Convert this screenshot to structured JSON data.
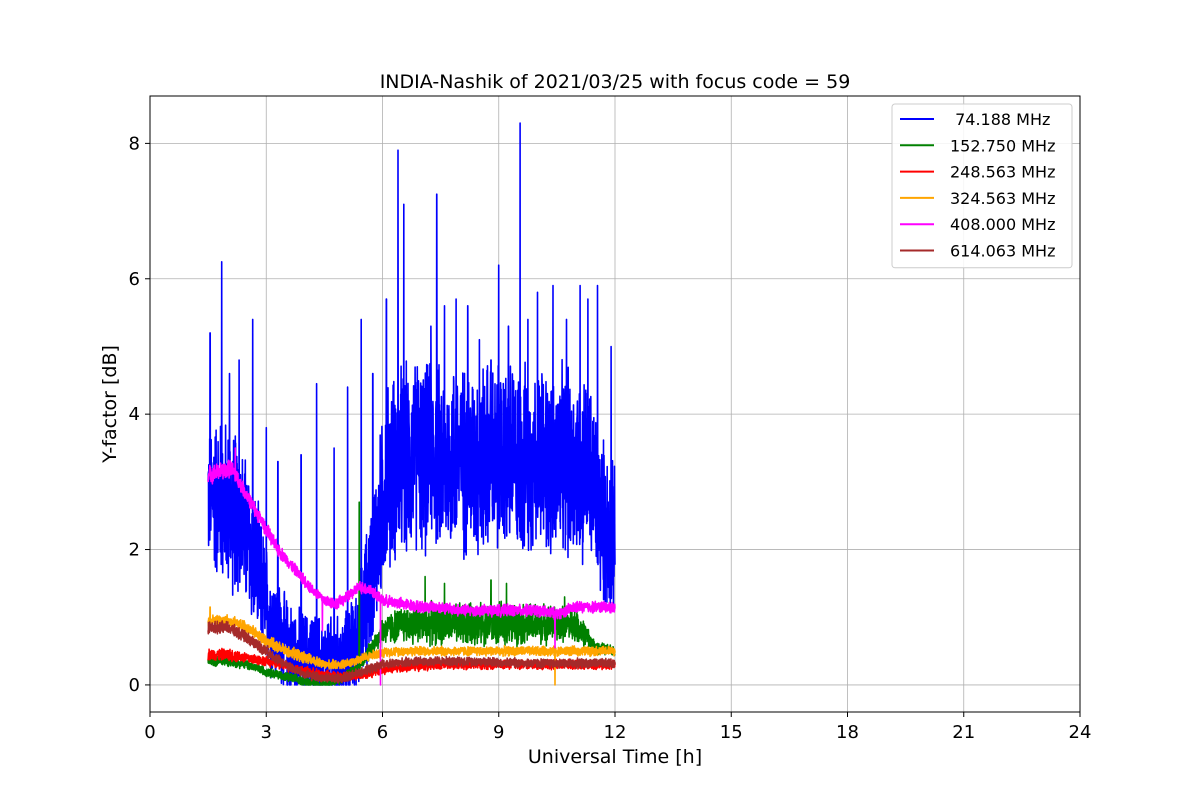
{
  "chart_data": {
    "type": "line",
    "title": "INDIA-Nashik of 2021/03/25 with focus code = 59",
    "xlabel": "Universal Time [h]",
    "ylabel": "Y-factor [dB]",
    "xlim": [
      0,
      24
    ],
    "ylim": [
      -0.4,
      8.7
    ],
    "xticks": [
      0,
      3,
      6,
      9,
      12,
      15,
      18,
      21,
      24
    ],
    "yticks": [
      0,
      2,
      4,
      6,
      8
    ],
    "grid": true,
    "legend_position": "top-right",
    "series": [
      {
        "name": " 74.188 MHz",
        "color": "#0000ff",
        "x": [
          1.5,
          1.7,
          1.9,
          2.1,
          2.3,
          2.5,
          2.7,
          2.9,
          3.1,
          3.3,
          3.5,
          3.7,
          3.9,
          4.1,
          4.3,
          4.5,
          4.7,
          4.9,
          5.1,
          5.3,
          5.5,
          5.7,
          5.9,
          6.1,
          6.3,
          6.5,
          6.7,
          6.9,
          7.1,
          7.3,
          7.5,
          7.7,
          7.9,
          8.1,
          8.3,
          8.5,
          8.7,
          8.9,
          9.1,
          9.3,
          9.5,
          9.7,
          9.9,
          10.1,
          10.3,
          10.5,
          10.7,
          10.9,
          11.1,
          11.3,
          11.5,
          11.7,
          11.9,
          12.0
        ],
        "mean": [
          2.8,
          2.8,
          2.7,
          2.6,
          2.5,
          2.2,
          1.8,
          1.4,
          1.0,
          0.8,
          0.6,
          0.5,
          0.4,
          0.4,
          0.35,
          0.3,
          0.3,
          0.3,
          0.4,
          0.6,
          1.0,
          1.6,
          2.3,
          3.0,
          3.2,
          3.3,
          3.3,
          3.4,
          3.3,
          3.4,
          3.3,
          3.3,
          3.4,
          3.3,
          3.3,
          3.3,
          3.4,
          3.3,
          3.3,
          3.4,
          3.3,
          3.3,
          3.3,
          3.3,
          3.3,
          3.2,
          3.3,
          3.2,
          3.2,
          3.2,
          2.8,
          2.4,
          2.2,
          2.1
        ],
        "spread": [
          1.2,
          1.4,
          1.4,
          1.4,
          1.3,
          1.3,
          1.2,
          1.1,
          1.0,
          0.9,
          0.8,
          0.8,
          0.8,
          0.8,
          0.8,
          0.8,
          0.8,
          0.8,
          0.8,
          0.9,
          1.1,
          1.3,
          1.4,
          1.6,
          1.6,
          1.6,
          1.6,
          1.6,
          1.6,
          1.6,
          1.6,
          1.6,
          1.6,
          1.6,
          1.6,
          1.6,
          1.6,
          1.6,
          1.6,
          1.6,
          1.6,
          1.6,
          1.6,
          1.6,
          1.6,
          1.6,
          1.6,
          1.6,
          1.6,
          1.6,
          1.5,
          1.4,
          1.3,
          1.2
        ],
        "spikes": [
          [
            1.55,
            5.2
          ],
          [
            1.85,
            6.25
          ],
          [
            2.05,
            4.6
          ],
          [
            2.3,
            4.8
          ],
          [
            2.65,
            5.4
          ],
          [
            3.0,
            3.8
          ],
          [
            3.3,
            3.3
          ],
          [
            3.9,
            3.4
          ],
          [
            4.3,
            4.45
          ],
          [
            4.75,
            3.5
          ],
          [
            5.1,
            4.4
          ],
          [
            5.45,
            5.4
          ],
          [
            5.75,
            4.6
          ],
          [
            6.1,
            5.7
          ],
          [
            6.4,
            7.9
          ],
          [
            6.55,
            7.1
          ],
          [
            6.9,
            4.7
          ],
          [
            7.25,
            5.3
          ],
          [
            7.4,
            7.25
          ],
          [
            7.6,
            5.6
          ],
          [
            7.9,
            5.7
          ],
          [
            8.2,
            5.6
          ],
          [
            8.5,
            5.1
          ],
          [
            8.8,
            4.8
          ],
          [
            9.0,
            6.2
          ],
          [
            9.25,
            5.3
          ],
          [
            9.55,
            8.3
          ],
          [
            9.75,
            5.4
          ],
          [
            10.0,
            5.8
          ],
          [
            10.4,
            5.9
          ],
          [
            10.75,
            5.4
          ],
          [
            11.1,
            5.9
          ],
          [
            11.3,
            5.7
          ],
          [
            11.55,
            5.9
          ],
          [
            11.9,
            5.0
          ]
        ]
      },
      {
        "name": "152.750 MHz",
        "color": "#008000",
        "x": [
          1.5,
          2.0,
          2.5,
          3.0,
          3.5,
          4.0,
          4.5,
          5.0,
          5.5,
          6.0,
          6.5,
          7.0,
          7.5,
          8.0,
          8.5,
          9.0,
          9.5,
          10.0,
          10.5,
          11.0,
          11.5,
          12.0
        ],
        "mean": [
          0.35,
          0.35,
          0.3,
          0.2,
          0.12,
          0.05,
          0.0,
          0.1,
          0.35,
          0.8,
          0.9,
          0.9,
          0.9,
          0.9,
          0.9,
          0.9,
          0.9,
          0.9,
          0.9,
          0.9,
          0.55,
          0.5
        ],
        "spread": [
          0.08,
          0.08,
          0.08,
          0.08,
          0.08,
          0.08,
          0.08,
          0.08,
          0.1,
          0.25,
          0.3,
          0.35,
          0.35,
          0.35,
          0.35,
          0.35,
          0.35,
          0.35,
          0.3,
          0.3,
          0.1,
          0.08
        ],
        "spikes": [
          [
            5.4,
            2.7
          ],
          [
            7.1,
            1.6
          ],
          [
            7.6,
            1.5
          ],
          [
            8.8,
            1.55
          ],
          [
            9.2,
            1.5
          ],
          [
            10.7,
            1.3
          ]
        ]
      },
      {
        "name": "248.563 MHz",
        "color": "#ff0000",
        "x": [
          1.5,
          2.0,
          2.5,
          3.0,
          3.5,
          4.0,
          4.5,
          5.0,
          5.5,
          6.0,
          6.5,
          7.0,
          7.5,
          8.0,
          8.5,
          9.0,
          9.5,
          10.0,
          10.5,
          11.0,
          11.5,
          12.0
        ],
        "mean": [
          0.45,
          0.45,
          0.4,
          0.35,
          0.28,
          0.2,
          0.15,
          0.12,
          0.15,
          0.22,
          0.26,
          0.28,
          0.3,
          0.3,
          0.3,
          0.3,
          0.3,
          0.3,
          0.3,
          0.3,
          0.3,
          0.3
        ],
        "spread": [
          0.1,
          0.1,
          0.1,
          0.08,
          0.08,
          0.08,
          0.08,
          0.08,
          0.08,
          0.08,
          0.08,
          0.08,
          0.08,
          0.08,
          0.08,
          0.08,
          0.08,
          0.08,
          0.08,
          0.08,
          0.08,
          0.08
        ],
        "spikes": []
      },
      {
        "name": "324.563 MHz",
        "color": "#ffa500",
        "x": [
          1.5,
          2.0,
          2.5,
          3.0,
          3.5,
          4.0,
          4.5,
          5.0,
          5.5,
          6.0,
          6.5,
          7.0,
          7.5,
          8.0,
          8.5,
          9.0,
          9.5,
          10.0,
          10.5,
          11.0,
          11.5,
          12.0
        ],
        "mean": [
          0.95,
          0.95,
          0.85,
          0.65,
          0.5,
          0.4,
          0.3,
          0.3,
          0.4,
          0.48,
          0.5,
          0.5,
          0.5,
          0.5,
          0.5,
          0.5,
          0.5,
          0.5,
          0.5,
          0.5,
          0.5,
          0.5
        ],
        "spread": [
          0.1,
          0.1,
          0.1,
          0.1,
          0.1,
          0.1,
          0.08,
          0.08,
          0.08,
          0.08,
          0.08,
          0.08,
          0.08,
          0.08,
          0.08,
          0.08,
          0.08,
          0.08,
          0.08,
          0.08,
          0.08,
          0.08
        ],
        "spikes": [
          [
            1.55,
            1.15
          ],
          [
            10.45,
            0.0
          ]
        ]
      },
      {
        "name": "408.000 MHz",
        "color": "#ff00ff",
        "x": [
          1.5,
          1.8,
          2.1,
          2.4,
          2.7,
          3.0,
          3.3,
          3.6,
          3.9,
          4.2,
          4.5,
          4.8,
          5.1,
          5.4,
          5.7,
          6.0,
          6.5,
          7.0,
          7.5,
          8.0,
          8.5,
          9.0,
          9.5,
          10.0,
          10.5,
          11.0,
          11.5,
          12.0
        ],
        "mean": [
          3.1,
          3.15,
          3.2,
          2.9,
          2.6,
          2.3,
          2.0,
          1.8,
          1.6,
          1.4,
          1.25,
          1.2,
          1.3,
          1.45,
          1.4,
          1.25,
          1.2,
          1.15,
          1.15,
          1.1,
          1.1,
          1.1,
          1.1,
          1.1,
          1.05,
          1.15,
          1.15,
          1.15
        ],
        "spread": [
          0.15,
          0.15,
          0.15,
          0.12,
          0.12,
          0.12,
          0.12,
          0.1,
          0.1,
          0.1,
          0.1,
          0.1,
          0.1,
          0.1,
          0.1,
          0.1,
          0.1,
          0.1,
          0.1,
          0.1,
          0.1,
          0.1,
          0.1,
          0.1,
          0.1,
          0.1,
          0.1,
          0.1
        ],
        "spikes": [
          [
            2.2,
            3.5
          ],
          [
            4.45,
            0.8
          ],
          [
            5.95,
            0.0
          ],
          [
            10.45,
            0.55
          ]
        ]
      },
      {
        "name": "614.063 MHz",
        "color": "#a52a2a",
        "x": [
          1.5,
          2.0,
          2.5,
          3.0,
          3.5,
          4.0,
          4.5,
          5.0,
          5.5,
          6.0,
          6.5,
          7.0,
          7.5,
          8.0,
          8.5,
          9.0,
          9.5,
          10.0,
          10.5,
          11.0,
          11.5,
          12.0
        ],
        "mean": [
          0.85,
          0.85,
          0.7,
          0.5,
          0.3,
          0.15,
          0.1,
          0.1,
          0.2,
          0.3,
          0.33,
          0.35,
          0.35,
          0.35,
          0.35,
          0.33,
          0.33,
          0.32,
          0.32,
          0.32,
          0.32,
          0.32
        ],
        "spread": [
          0.1,
          0.1,
          0.1,
          0.1,
          0.08,
          0.08,
          0.08,
          0.08,
          0.08,
          0.08,
          0.08,
          0.08,
          0.08,
          0.08,
          0.08,
          0.08,
          0.08,
          0.08,
          0.08,
          0.08,
          0.08,
          0.08
        ],
        "spikes": []
      }
    ]
  }
}
